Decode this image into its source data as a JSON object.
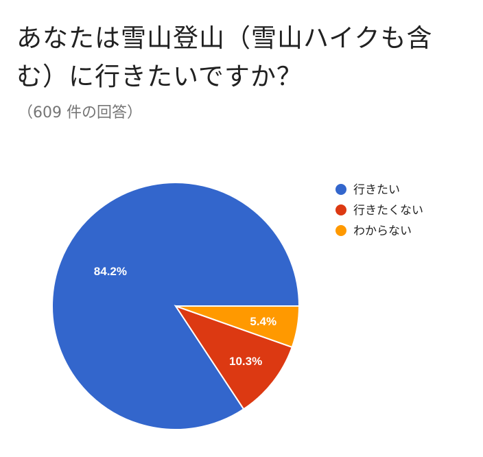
{
  "header": {
    "title": "あなたは雪山登山（雪山ハイクも含む）に行きたいですか？",
    "subtitle": "（609 件の回答）"
  },
  "chart_data": {
    "type": "pie",
    "title": "あなたは雪山登山（雪山ハイクも含む）に行きたいですか？",
    "subtitle": "（609 件の回答）",
    "legend_position": "right",
    "slices": [
      {
        "name": "行きたい",
        "value": 84.2,
        "label": "84.2%",
        "color": "#3366cc"
      },
      {
        "name": "行きたくない",
        "value": 10.3,
        "label": "10.3%",
        "color": "#dc3912"
      },
      {
        "name": "わからない",
        "value": 5.4,
        "label": "5.4%",
        "color": "#ff9900"
      }
    ]
  }
}
